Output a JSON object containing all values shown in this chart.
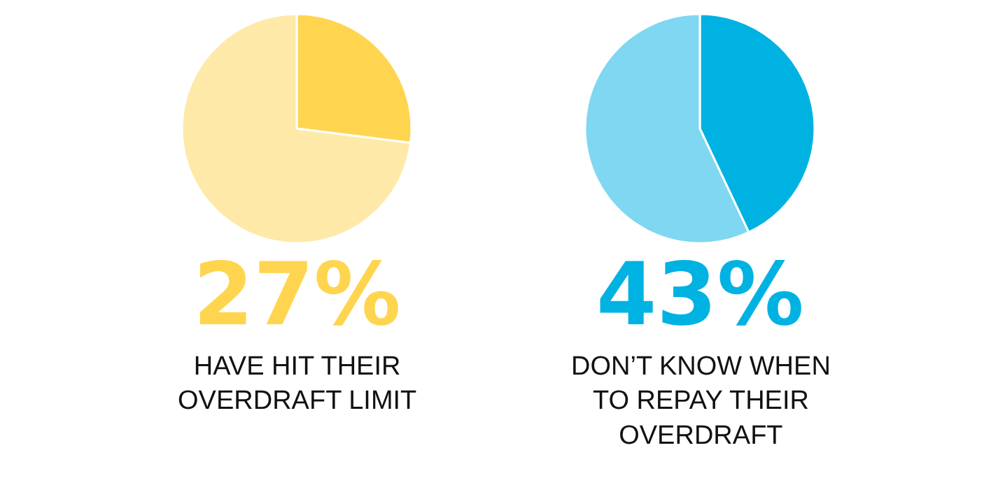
{
  "chart_data": [
    {
      "type": "pie",
      "categories": [
        null,
        null
      ],
      "values": [
        27,
        73
      ],
      "colors": [
        "#ffd54f",
        "#fee9a8"
      ],
      "title": "27%",
      "annotations": [
        "HAVE HIT THEIR\nOVERDRAFT LIMIT"
      ]
    },
    {
      "type": "pie",
      "categories": [
        null,
        null
      ],
      "values": [
        43,
        57
      ],
      "colors": [
        "#00b2e2",
        "#7fd7f1"
      ],
      "title": "43%",
      "annotations": [
        "DON’T KNOW WHEN\nTO REPAY THEIR\nOVERDRAFT"
      ]
    }
  ]
}
